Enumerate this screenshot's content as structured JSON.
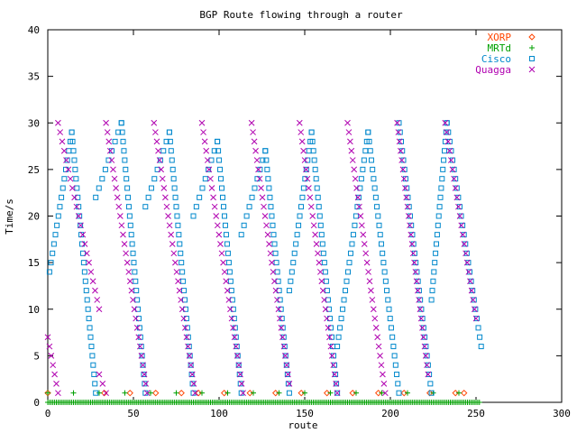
{
  "chart_data": {
    "type": "scatter",
    "title": "BGP Route flowing through a router",
    "xlabel": "route",
    "ylabel": "Time/s",
    "xlim": [
      0,
      300
    ],
    "ylim": [
      0,
      40
    ],
    "xticks": [
      0,
      50,
      100,
      150,
      200,
      250,
      300
    ],
    "yticks": [
      0,
      5,
      10,
      15,
      20,
      25,
      30,
      35,
      40
    ],
    "grid": false,
    "legend_position": "top-right",
    "series": [
      {
        "name": "XORP",
        "marker": "diamond",
        "color": "#ff4400",
        "x": [
          0,
          33,
          48,
          63,
          78,
          88,
          103,
          118,
          133,
          148,
          163,
          178,
          193,
          208,
          223,
          238,
          243
        ],
        "y": [
          1,
          1,
          1,
          1,
          1,
          1,
          1,
          1,
          1,
          1,
          1,
          1,
          1,
          1,
          1,
          1,
          1
        ]
      },
      {
        "name": "MRTd",
        "marker": "plus",
        "color": "#00a000",
        "x": [
          0,
          5,
          10,
          15,
          20,
          25,
          30,
          35,
          40,
          45,
          50,
          55,
          60,
          65,
          70,
          75,
          80,
          85,
          90,
          95,
          100,
          105,
          110,
          115,
          120,
          125,
          130,
          135,
          140,
          145,
          150,
          155,
          160,
          165,
          170,
          175,
          180,
          185,
          190,
          195,
          200,
          205,
          210,
          215,
          220,
          225,
          230,
          235,
          240,
          245,
          250
        ],
        "y": [
          1,
          0,
          0,
          1,
          0,
          0,
          1,
          0,
          0,
          1,
          0,
          0,
          1,
          0,
          0,
          1,
          0,
          0,
          1,
          0,
          0,
          1,
          0,
          0,
          1,
          0,
          0,
          1,
          0,
          0,
          1,
          0,
          0,
          1,
          0,
          0,
          1,
          0,
          0,
          1,
          0,
          0,
          1,
          0,
          0,
          1,
          0,
          0,
          1,
          0,
          0
        ]
      },
      {
        "name": "Cisco",
        "marker": "square",
        "color": "#0088cc",
        "segments": [
          {
            "x0": 1,
            "x1": 14,
            "y0": 14,
            "y1": 29,
            "xb0": 1,
            "xb1": 14
          },
          {
            "x0": 14,
            "x1": 28,
            "y0": 29,
            "y1": 1
          },
          {
            "x0": 28,
            "x1": 43,
            "y0": 22,
            "y1": 30
          },
          {
            "x0": 43,
            "x1": 57,
            "y0": 30,
            "y1": 1
          },
          {
            "x0": 57,
            "x1": 71,
            "y0": 21,
            "y1": 29
          },
          {
            "x0": 71,
            "x1": 85,
            "y0": 29,
            "y1": 1
          },
          {
            "x0": 85,
            "x1": 99,
            "y0": 20,
            "y1": 28
          },
          {
            "x0": 99,
            "x1": 113,
            "y0": 28,
            "y1": 1
          },
          {
            "x0": 113,
            "x1": 127,
            "y0": 18,
            "y1": 27
          },
          {
            "x0": 127,
            "x1": 141,
            "y0": 27,
            "y1": 1
          },
          {
            "x0": 141,
            "x1": 154,
            "y0": 12,
            "y1": 29
          },
          {
            "x0": 154,
            "x1": 169,
            "y0": 29,
            "y1": 1
          },
          {
            "x0": 169,
            "x1": 187,
            "y0": 6,
            "y1": 29
          },
          {
            "x0": 187,
            "x1": 205,
            "y0": 29,
            "y1": 1
          },
          {
            "x0": 205,
            "x1": 224,
            "y0": 30,
            "y1": 1
          },
          {
            "x0": 224,
            "x1": 233,
            "y0": 11,
            "y1": 30
          },
          {
            "x0": 233,
            "x1": 253,
            "y0": 30,
            "y1": 6
          }
        ]
      },
      {
        "name": "Quagga",
        "marker": "cross",
        "color": "#b000b0",
        "segments": [
          {
            "x0": 0,
            "x1": 6,
            "y0": 7,
            "y1": 1
          },
          {
            "x0": 6,
            "x1": 30,
            "y0": 30,
            "y1": 10
          },
          {
            "x0": 30,
            "x1": 34,
            "y0": 3,
            "y1": 1
          },
          {
            "x0": 34,
            "x1": 58,
            "y0": 30,
            "y1": 1
          },
          {
            "x0": 62,
            "x1": 86,
            "y0": 30,
            "y1": 1
          },
          {
            "x0": 90,
            "x1": 114,
            "y0": 30,
            "y1": 1
          },
          {
            "x0": 119,
            "x1": 141,
            "y0": 30,
            "y1": 2
          },
          {
            "x0": 147,
            "x1": 169,
            "y0": 30,
            "y1": 1
          },
          {
            "x0": 175,
            "x1": 197,
            "y0": 30,
            "y1": 1
          },
          {
            "x0": 204,
            "x1": 222,
            "y0": 30,
            "y1": 3
          },
          {
            "x0": 232,
            "x1": 250,
            "y0": 30,
            "y1": 9
          }
        ]
      }
    ]
  }
}
